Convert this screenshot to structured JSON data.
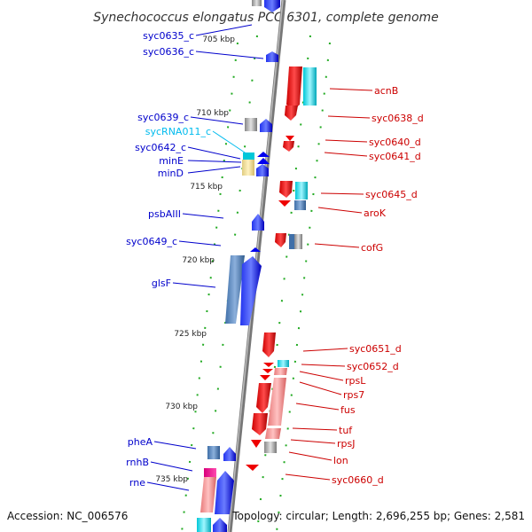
{
  "title": "Synechococcus elongatus PCC 6301, complete genome",
  "footer": {
    "accession": "Accession: NC_006576",
    "summary": "Topology: circular; Length: 2,696,255 bp; Genes: 2,581"
  },
  "colors": {
    "forward_gene": "#0000ee",
    "reverse_gene": "#ee0000",
    "rna_label": "#00bbee",
    "backbone": "#888888",
    "tick_mark": "#22aa22"
  },
  "ticks": [
    "705 kbp",
    "710 kbp",
    "715 kbp",
    "720 kbp",
    "725 kbp",
    "730 kbp",
    "735 kbp"
  ],
  "left_labels": [
    {
      "text": "syc0635_c",
      "type": "gene"
    },
    {
      "text": "syc0636_c",
      "type": "gene"
    },
    {
      "text": "syc0639_c",
      "type": "gene"
    },
    {
      "text": "sycRNA011_c",
      "type": "rna"
    },
    {
      "text": "syc0642_c",
      "type": "gene"
    },
    {
      "text": "minE",
      "type": "gene"
    },
    {
      "text": "minD",
      "type": "gene"
    },
    {
      "text": "psbAIII",
      "type": "gene"
    },
    {
      "text": "syc0649_c",
      "type": "gene"
    },
    {
      "text": "glsF",
      "type": "gene"
    },
    {
      "text": "pheA",
      "type": "gene"
    },
    {
      "text": "rnhB",
      "type": "gene"
    },
    {
      "text": "rne",
      "type": "gene"
    }
  ],
  "right_labels": [
    {
      "text": "acnB"
    },
    {
      "text": "syc0638_d"
    },
    {
      "text": "syc0640_d"
    },
    {
      "text": "syc0641_d"
    },
    {
      "text": "syc0645_d"
    },
    {
      "text": "aroK"
    },
    {
      "text": "cofG"
    },
    {
      "text": "syc0651_d"
    },
    {
      "text": "syc0652_d"
    },
    {
      "text": "rpsL"
    },
    {
      "text": "rps7"
    },
    {
      "text": "fus"
    },
    {
      "text": "tuf"
    },
    {
      "text": "rpsJ"
    },
    {
      "text": "lon"
    },
    {
      "text": "syc0660_d"
    }
  ]
}
